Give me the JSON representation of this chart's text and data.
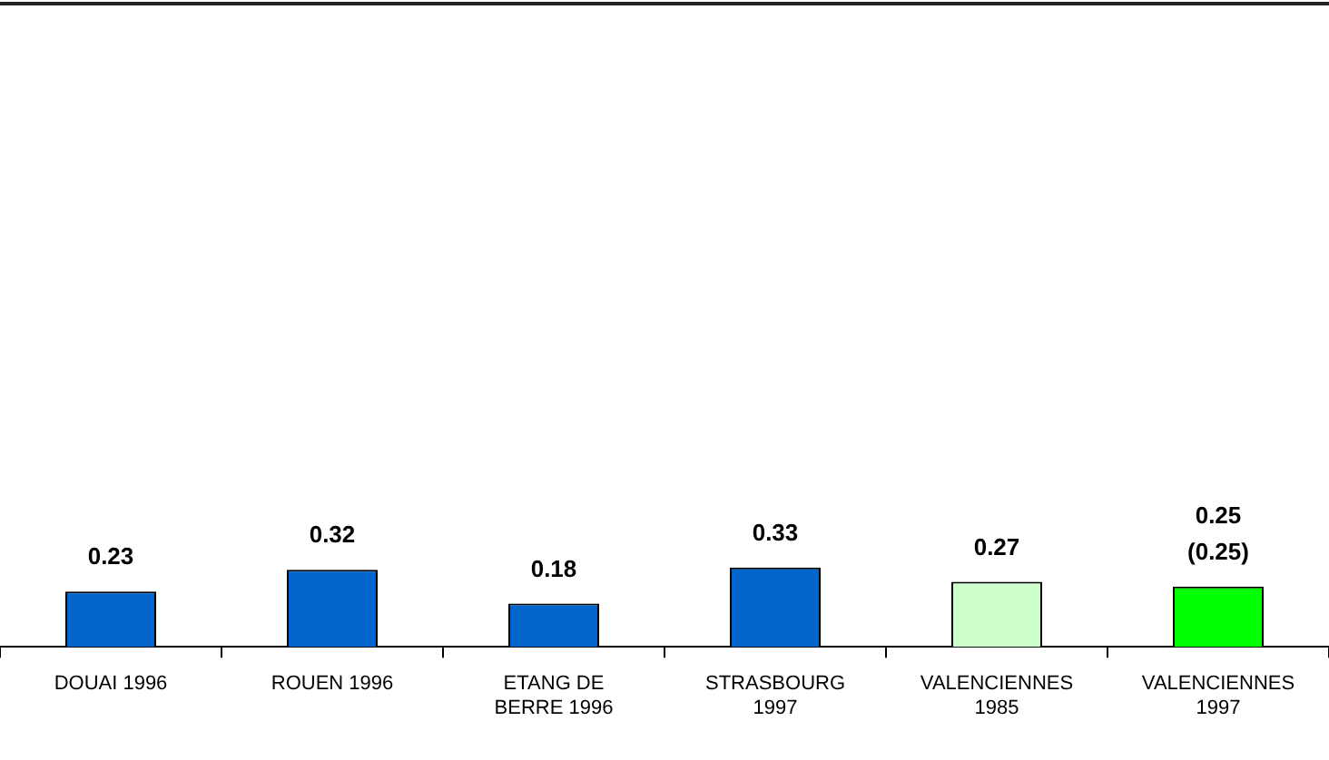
{
  "chart_data": {
    "type": "bar",
    "categories": [
      "DOUAI 1996",
      "ROUEN 1996",
      "ETANG DE BERRE 1996",
      "STRASBOURG 1997",
      "VALENCIENNES 1985",
      "VALENCIENNES 1997"
    ],
    "values": [
      0.23,
      0.32,
      0.18,
      0.33,
      0.27,
      0.25
    ],
    "colors": [
      "#0066cc",
      "#0066cc",
      "#0066cc",
      "#0066cc",
      "#ccffcc",
      "#00ff00"
    ],
    "value_labels": [
      "0.23",
      "0.32",
      "0.18",
      "0.33",
      "0.27",
      "0.25\n(0.25)"
    ],
    "grid": false,
    "legend": false
  }
}
